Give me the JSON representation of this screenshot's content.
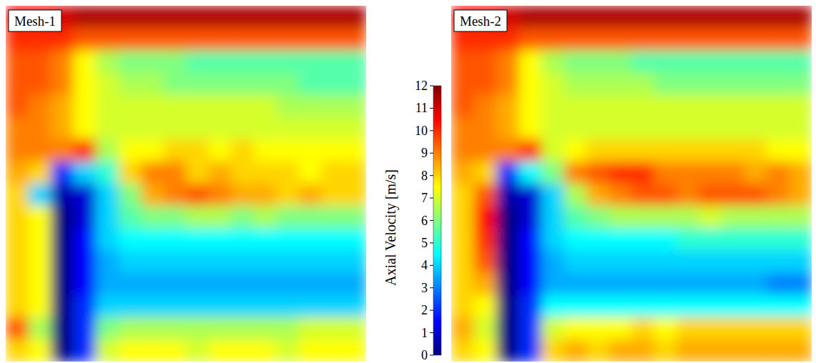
{
  "chart_data": [
    {
      "type": "heatmap",
      "title": "Mesh-1",
      "cells": [
        [
          10.5,
          10.5,
          11,
          11.5,
          11.5,
          11.5,
          11.5,
          11.5,
          11.5,
          11.5,
          11.5,
          11.5,
          11.5,
          11.5,
          11.5,
          11.5
        ],
        [
          10,
          10,
          10,
          9.5,
          9.5,
          9.5,
          9.5,
          9.5,
          9.5,
          9.5,
          9.5,
          9.5,
          9.5,
          9.5,
          9.5,
          9.5
        ],
        [
          9.5,
          9.5,
          9,
          7.5,
          6.5,
          6,
          6,
          6,
          5.5,
          5.5,
          5.5,
          5.5,
          5.5,
          5.5,
          5.5,
          5.5
        ],
        [
          9.5,
          9.5,
          9,
          7.5,
          7,
          6.5,
          6.5,
          6,
          6,
          6,
          6,
          6,
          6,
          5.5,
          5.5,
          5.5
        ],
        [
          9.5,
          9,
          8.5,
          7.5,
          7,
          7,
          7,
          7,
          7,
          7,
          7,
          7,
          6.5,
          6.5,
          6.5,
          6.5
        ],
        [
          9,
          9,
          8.5,
          7.5,
          7,
          7,
          7,
          7,
          7,
          7,
          7,
          7,
          7,
          7,
          7,
          7
        ],
        [
          9,
          9,
          9,
          10,
          6.5,
          7.5,
          7.5,
          8,
          8,
          7.5,
          8,
          7.5,
          7.5,
          7.5,
          7.5,
          7.5
        ],
        [
          8.5,
          8,
          2,
          4,
          5,
          8,
          9,
          9,
          8,
          8.5,
          8,
          8,
          8,
          7.5,
          8,
          8
        ],
        [
          8,
          4,
          0.5,
          1,
          4,
          6,
          8.5,
          9,
          9.5,
          9,
          8.5,
          8.5,
          8,
          8.5,
          8,
          8
        ],
        [
          8,
          7.5,
          0,
          1,
          4,
          5.5,
          6,
          6,
          6.5,
          6.5,
          6,
          6.5,
          6,
          6,
          6,
          6
        ],
        [
          8,
          7.5,
          0,
          1.5,
          4,
          4.5,
          4.5,
          4.5,
          4.5,
          4.5,
          4.5,
          4.5,
          4.5,
          4.5,
          4.5,
          4.5
        ],
        [
          8,
          7.5,
          0,
          1.5,
          3.5,
          4,
          4,
          4,
          4,
          4,
          4,
          4,
          4,
          4,
          4,
          4
        ],
        [
          8,
          7.5,
          0,
          1.5,
          3.5,
          3.5,
          3.5,
          3.5,
          3.5,
          3.5,
          3.5,
          3.5,
          3.5,
          3.5,
          3.5,
          3.5
        ],
        [
          8,
          7.5,
          0,
          2,
          4,
          4,
          4,
          4,
          4,
          4,
          4,
          4,
          4,
          4,
          4,
          4
        ],
        [
          9.5,
          6.5,
          0,
          2,
          6,
          6.5,
          6.5,
          6.5,
          6.5,
          6.5,
          6.5,
          6.5,
          6.5,
          7,
          7,
          7
        ],
        [
          8,
          7.5,
          0,
          2,
          7,
          7.5,
          7.5,
          7.5,
          7,
          7.5,
          7.5,
          7.5,
          7,
          7.5,
          7.5,
          7.5
        ]
      ]
    },
    {
      "type": "heatmap",
      "title": "Mesh-2",
      "cells": [
        [
          10.5,
          10.5,
          11,
          11.5,
          11.5,
          11.5,
          11.5,
          11.5,
          11.5,
          11.5,
          11.5,
          11.5,
          11.5,
          11.5,
          11.5,
          11.5
        ],
        [
          10,
          10,
          10,
          9.5,
          9.5,
          9.5,
          9.5,
          9.5,
          9.5,
          9.5,
          9.5,
          9.5,
          9.5,
          9.5,
          9.5,
          9.5
        ],
        [
          9.5,
          9.5,
          9,
          7.5,
          6.5,
          6,
          6,
          6,
          5.5,
          5.5,
          5.5,
          5.5,
          5.5,
          5.5,
          5.5,
          5.5
        ],
        [
          9.5,
          9.5,
          9,
          7.5,
          7,
          6.5,
          6.5,
          6.5,
          6.5,
          6,
          6,
          6,
          6,
          6,
          6,
          6
        ],
        [
          9.5,
          9,
          8.5,
          7.5,
          7,
          7,
          7,
          7,
          7,
          7,
          7,
          7,
          7,
          7,
          7,
          7
        ],
        [
          9,
          9,
          8.5,
          7.5,
          7,
          7,
          7,
          7,
          7,
          7,
          7,
          7,
          7,
          7,
          7,
          7
        ],
        [
          9,
          9,
          9,
          10,
          7,
          7.5,
          8,
          8,
          8,
          8,
          8,
          8,
          8,
          8,
          7.5,
          7.5
        ],
        [
          8.5,
          8,
          2,
          4.5,
          6,
          9,
          9.5,
          10,
          10,
          9,
          9,
          9,
          9,
          8.5,
          9,
          8.5
        ],
        [
          8,
          9.5,
          0.5,
          1,
          4,
          6.5,
          8.5,
          9,
          9.5,
          9.5,
          9,
          9.5,
          9.5,
          9.5,
          9,
          8.5
        ],
        [
          8,
          10.5,
          0,
          1,
          4,
          5.5,
          6,
          6.5,
          6.5,
          6.5,
          6.5,
          7,
          6.5,
          6.5,
          6.5,
          6.5
        ],
        [
          8,
          10,
          0,
          1.5,
          4,
          4.5,
          4.5,
          4.5,
          4.5,
          4.5,
          5,
          5,
          5,
          5,
          5,
          5
        ],
        [
          8,
          9.5,
          0,
          1.5,
          3.5,
          4,
          4,
          4,
          4,
          4,
          4,
          4,
          4,
          4,
          4,
          4
        ],
        [
          8,
          8.5,
          0,
          1.5,
          3.5,
          3.5,
          3.5,
          3.5,
          3.5,
          3.5,
          3.5,
          3.5,
          3.5,
          3.5,
          3,
          3
        ],
        [
          8,
          7.5,
          0,
          2,
          4.5,
          4.5,
          4.5,
          4.5,
          4.5,
          4.5,
          4.5,
          4.5,
          4.5,
          4.5,
          4.5,
          4.5
        ],
        [
          8.5,
          7,
          0,
          2,
          7,
          7.5,
          7.5,
          7.5,
          8,
          7.5,
          8,
          8,
          8,
          8,
          8,
          8
        ],
        [
          8,
          7.5,
          0,
          2,
          8,
          8.5,
          8,
          8.5,
          8.5,
          8,
          8.5,
          8.5,
          8.5,
          8.5,
          8.5,
          8.5
        ]
      ]
    }
  ],
  "colorbar": {
    "label": "Axial Velocity [m/s]",
    "range": [
      0,
      12
    ],
    "ticks": [
      0,
      1,
      2,
      3,
      4,
      5,
      6,
      7,
      8,
      9,
      10,
      11,
      12
    ]
  }
}
